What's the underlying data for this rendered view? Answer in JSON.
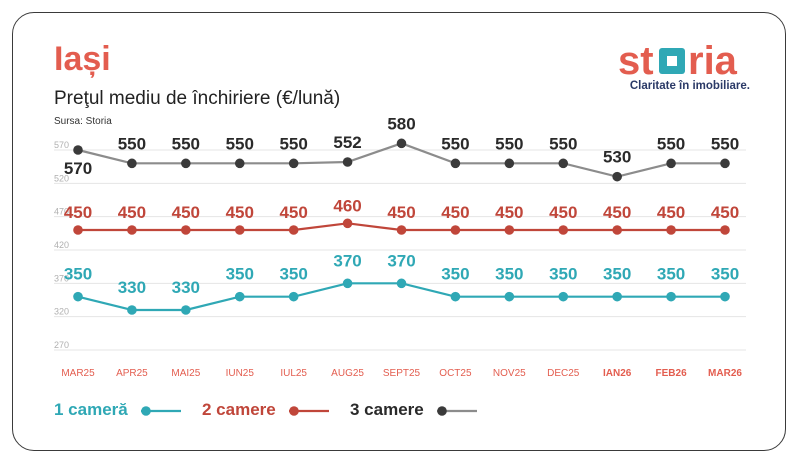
{
  "header": {
    "city": "Iași",
    "subtitle": "Preţul mediu de închiriere (€/lună)",
    "source": "Sursa: Storia"
  },
  "logo": {
    "brand": "storia",
    "tagline": "Claritate în imobiliare.",
    "colors": {
      "text": "#e35d4f",
      "square": "#2fa8b5",
      "tagline": "#2b3a67"
    }
  },
  "chart_data": {
    "type": "line",
    "categories": [
      "MAR25",
      "APR25",
      "MAI25",
      "IUN25",
      "IUL25",
      "AUG25",
      "SEPT25",
      "OCT25",
      "NOV25",
      "DEC25",
      "IAN26",
      "FEB26",
      "MAR26"
    ],
    "highlighted_categories": [
      "IAN26",
      "FEB26",
      "MAR26"
    ],
    "ylim": [
      270,
      590
    ],
    "yticks": [
      270,
      320,
      370,
      420,
      470,
      520,
      570
    ],
    "grid": true,
    "legend_position": "bottom-left",
    "series": [
      {
        "name": "1 cameră",
        "color": "#2fa8b5",
        "values": [
          350,
          330,
          330,
          350,
          350,
          370,
          370,
          350,
          350,
          350,
          350,
          350,
          350
        ]
      },
      {
        "name": "2 camere",
        "color": "#c0463a",
        "values": [
          450,
          450,
          450,
          450,
          450,
          460,
          450,
          450,
          450,
          450,
          450,
          450,
          450
        ]
      },
      {
        "name": "3 camere",
        "color": "#8c8c8c",
        "marker_color": "#3a3a3a",
        "values": [
          570,
          550,
          550,
          550,
          550,
          552,
          580,
          550,
          550,
          550,
          530,
          550,
          550
        ]
      }
    ]
  }
}
